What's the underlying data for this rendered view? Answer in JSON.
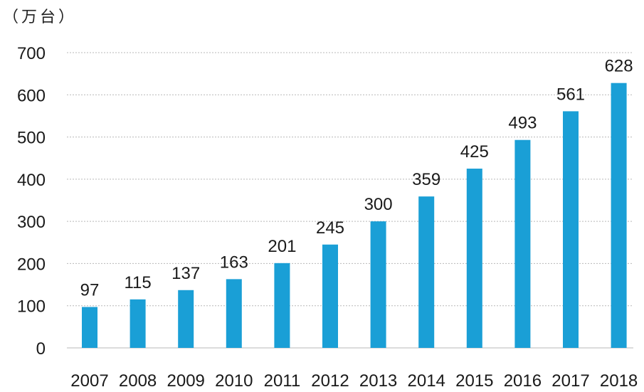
{
  "chart_data": {
    "type": "bar",
    "unit_label": "（万台）",
    "categories": [
      "2007",
      "2008",
      "2009",
      "2010",
      "2011",
      "2012",
      "2013",
      "2014",
      "2015",
      "2016",
      "2017",
      "2018"
    ],
    "values": [
      97,
      115,
      137,
      163,
      201,
      245,
      300,
      359,
      425,
      493,
      561,
      628
    ],
    "ylim": [
      0,
      700
    ],
    "yticks": [
      0,
      100,
      200,
      300,
      400,
      500,
      600,
      700
    ],
    "grid": true,
    "bar_color": "#1a9fd6",
    "grid_color": "#b8b8b8"
  }
}
